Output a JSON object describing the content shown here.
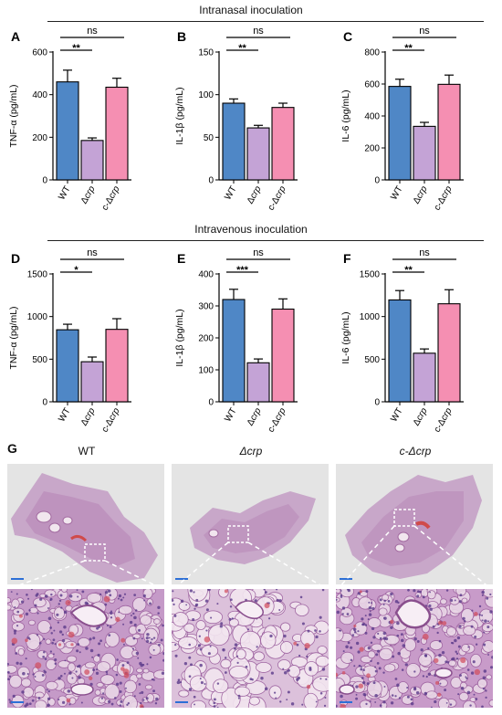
{
  "sections": [
    {
      "title": "Intranasal inoculation"
    },
    {
      "title": "Intravenous inoculation"
    }
  ],
  "chart_data": [
    {
      "panel": "A",
      "type": "bar",
      "categories": [
        "WT",
        "Δcrp",
        "c-Δcrp"
      ],
      "values": [
        460,
        185,
        435
      ],
      "errors": [
        55,
        12,
        42
      ],
      "ylabel": "TNF-α (pg/mL)",
      "ylim": [
        0,
        600
      ],
      "yticks": [
        0,
        200,
        400,
        600
      ],
      "comparisons": [
        {
          "label": "**",
          "from": 0,
          "to": 1
        },
        {
          "label": "ns",
          "from": 0,
          "to": 2
        }
      ],
      "colors": [
        "#4f87c6",
        "#c4a3d6",
        "#f58fb2"
      ]
    },
    {
      "panel": "B",
      "type": "bar",
      "categories": [
        "WT",
        "Δcrp",
        "c-Δcrp"
      ],
      "values": [
        90,
        61,
        85
      ],
      "errors": [
        5,
        3,
        5
      ],
      "ylabel": "IL-1β (pg/mL)",
      "ylim": [
        0,
        150
      ],
      "yticks": [
        0,
        50,
        100,
        150
      ],
      "comparisons": [
        {
          "label": "**",
          "from": 0,
          "to": 1
        },
        {
          "label": "ns",
          "from": 0,
          "to": 2
        }
      ],
      "colors": [
        "#4f87c6",
        "#c4a3d6",
        "#f58fb2"
      ]
    },
    {
      "panel": "C",
      "type": "bar",
      "categories": [
        "WT",
        "Δcrp",
        "c-Δcrp"
      ],
      "values": [
        585,
        335,
        598
      ],
      "errors": [
        45,
        25,
        58
      ],
      "ylabel": "IL-6 (pg/mL)",
      "ylim": [
        0,
        800
      ],
      "yticks": [
        0,
        200,
        400,
        600,
        800
      ],
      "comparisons": [
        {
          "label": "**",
          "from": 0,
          "to": 1
        },
        {
          "label": "ns",
          "from": 0,
          "to": 2
        }
      ],
      "colors": [
        "#4f87c6",
        "#c4a3d6",
        "#f58fb2"
      ]
    },
    {
      "panel": "D",
      "type": "bar",
      "categories": [
        "WT",
        "Δcrp",
        "c-Δcrp"
      ],
      "values": [
        845,
        470,
        850
      ],
      "errors": [
        65,
        55,
        125
      ],
      "ylabel": "TNF-α (pg/mL)",
      "ylim": [
        0,
        1500
      ],
      "yticks": [
        0,
        500,
        1000,
        1500
      ],
      "comparisons": [
        {
          "label": "*",
          "from": 0,
          "to": 1
        },
        {
          "label": "ns",
          "from": 0,
          "to": 2
        }
      ],
      "colors": [
        "#4f87c6",
        "#c4a3d6",
        "#f58fb2"
      ]
    },
    {
      "panel": "E",
      "type": "bar",
      "categories": [
        "WT",
        "Δcrp",
        "c-Δcrp"
      ],
      "values": [
        320,
        122,
        290
      ],
      "errors": [
        32,
        12,
        32
      ],
      "ylabel": "IL-1β (pg/mL)",
      "ylim": [
        0,
        400
      ],
      "yticks": [
        0,
        100,
        200,
        300,
        400
      ],
      "comparisons": [
        {
          "label": "***",
          "from": 0,
          "to": 1
        },
        {
          "label": "ns",
          "from": 0,
          "to": 2
        }
      ],
      "colors": [
        "#4f87c6",
        "#c4a3d6",
        "#f58fb2"
      ]
    },
    {
      "panel": "F",
      "type": "bar",
      "categories": [
        "WT",
        "Δcrp",
        "c-Δcrp"
      ],
      "values": [
        1195,
        570,
        1150
      ],
      "errors": [
        110,
        50,
        165
      ],
      "ylabel": "IL-6 (pg/mL)",
      "ylim": [
        0,
        1500
      ],
      "yticks": [
        0,
        500,
        1000,
        1500
      ],
      "comparisons": [
        {
          "label": "**",
          "from": 0,
          "to": 1
        },
        {
          "label": "ns",
          "from": 0,
          "to": 2
        }
      ],
      "colors": [
        "#4f87c6",
        "#c4a3d6",
        "#f58fb2"
      ]
    }
  ],
  "histology": {
    "panel": "G",
    "labels": [
      "WT",
      "Δcrp",
      "c-Δcrp"
    ]
  }
}
